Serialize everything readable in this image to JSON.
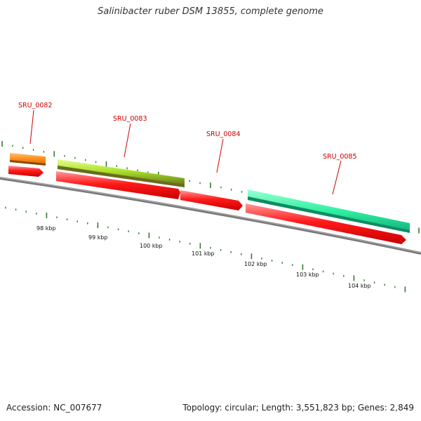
{
  "title": "Salinibacter ruber DSM 13855, complete genome",
  "footer": {
    "accession": "Accession: NC_007677",
    "summary": "Topology: circular; Length: 3,551,823 bp; Genes: 2,849"
  },
  "colors": {
    "background": "#ffffff",
    "backbone": "#808080",
    "tick": "#2e7d32",
    "gene_label": "#cc0000",
    "cds": "#ff0000",
    "orange_feature": "#ff8c1a",
    "yellowgreen_feature": "#a8e02a",
    "cyan_feature": "#2ef0a0"
  },
  "map": {
    "scale_labels": [
      "98 kbp",
      "99 kbp",
      "100 kbp",
      "101 kbp",
      "102 kbp",
      "103 kbp",
      "104 kbp"
    ],
    "genes": [
      {
        "name": "SRU_0082",
        "feature": "orange"
      },
      {
        "name": "SRU_0083",
        "feature": "yellowgreen"
      },
      {
        "name": "SRU_0084",
        "feature": "none"
      },
      {
        "name": "SRU_0085",
        "feature": "cyan"
      }
    ]
  }
}
